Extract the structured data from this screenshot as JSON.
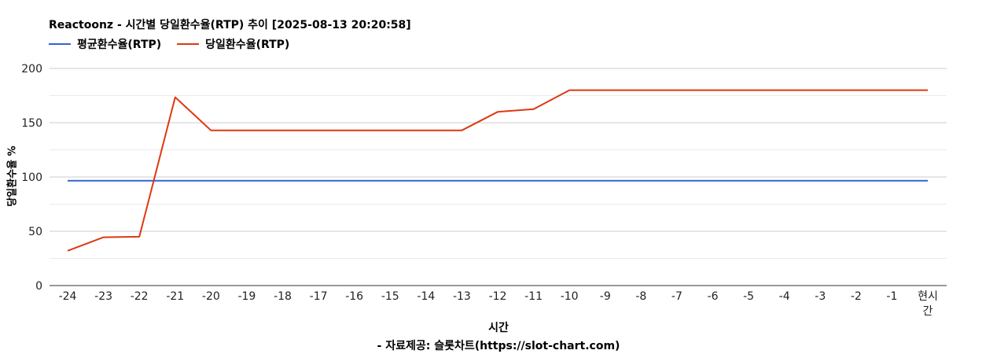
{
  "chart_data": {
    "type": "line",
    "title": "Reactoonz - 시간별 당일환수율(RTP) 추이 [2025-08-13 20:20:58]",
    "xlabel": "시간",
    "ylabel": "당일환수율 %",
    "source": "- 자료제공: 슬롯차트(https://slot-chart.com)",
    "categories": [
      "-24",
      "-23",
      "-22",
      "-21",
      "-20",
      "-19",
      "-18",
      "-17",
      "-16",
      "-15",
      "-14",
      "-13",
      "-12",
      "-11",
      "-10",
      "-9",
      "-8",
      "-7",
      "-6",
      "-5",
      "-4",
      "-3",
      "-2",
      "-1",
      "현시간"
    ],
    "ylim": [
      0,
      200
    ],
    "yticks": [
      "0",
      "50",
      "100",
      "150",
      "200"
    ],
    "ytick_values": [
      0,
      50,
      100,
      150,
      200
    ],
    "grid": true,
    "legend_position": "top-left",
    "series": [
      {
        "name": "평균환수율(RTP)",
        "color": "#3366cc",
        "values": [
          96.5,
          96.5,
          96.5,
          96.5,
          96.5,
          96.5,
          96.5,
          96.5,
          96.5,
          96.5,
          96.5,
          96.5,
          96.5,
          96.5,
          96.5,
          96.5,
          96.5,
          96.5,
          96.5,
          96.5,
          96.5,
          96.5,
          96.5,
          96.5,
          96.5
        ]
      },
      {
        "name": "당일환수율(RTP)",
        "color": "#dc3912",
        "values": [
          32,
          44.5,
          45,
          173.5,
          143,
          143,
          143,
          143,
          143,
          143,
          143,
          143,
          160,
          162.5,
          180,
          180,
          180,
          180,
          180,
          180,
          180,
          180,
          180,
          180,
          180
        ]
      }
    ]
  }
}
